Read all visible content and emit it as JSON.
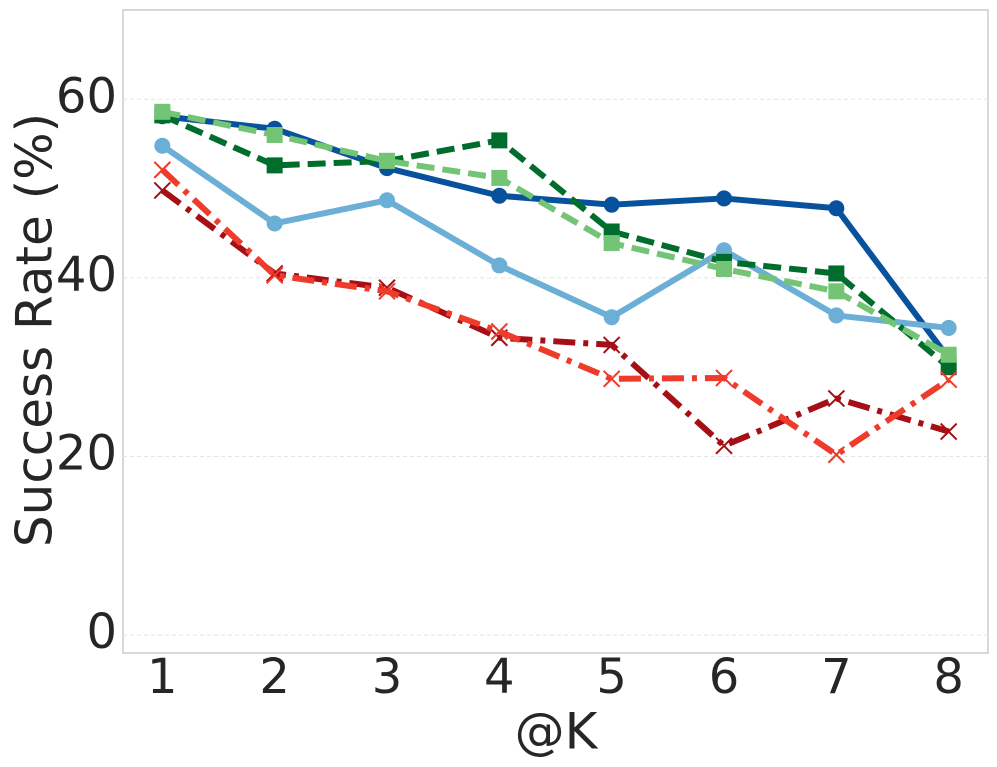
{
  "chart_data": {
    "type": "line",
    "xlabel": "@K",
    "ylabel": "Success Rate (%)",
    "x": [
      1,
      2,
      3,
      4,
      5,
      6,
      7,
      8
    ],
    "xlim": [
      0.65,
      8.35
    ],
    "ylim": [
      -2,
      70
    ],
    "xticks": [
      1,
      2,
      3,
      4,
      5,
      6,
      7,
      8
    ],
    "yticks": [
      0,
      20,
      40,
      60
    ],
    "grid": true,
    "series": [
      {
        "color": "#08519c",
        "dash": "solid",
        "marker": "circle",
        "values": [
          58.1,
          56.7,
          52.3,
          49.2,
          48.2,
          48.9,
          47.8,
          31.0
        ]
      },
      {
        "color": "#6baed6",
        "dash": "solid",
        "marker": "circle",
        "values": [
          54.8,
          46.1,
          48.7,
          41.4,
          35.6,
          43.1,
          35.8,
          34.4
        ]
      },
      {
        "color": "#006d2c",
        "dash": "dashed",
        "marker": "square",
        "values": [
          58.2,
          52.6,
          53.1,
          55.4,
          45.2,
          41.8,
          40.5,
          30.0
        ]
      },
      {
        "color": "#74c476",
        "dash": "dashed",
        "marker": "square",
        "values": [
          58.6,
          56.0,
          53.1,
          51.2,
          43.9,
          41.0,
          38.5,
          31.4
        ]
      },
      {
        "color": "#a50f15",
        "dash": "dashdot",
        "marker": "x",
        "values": [
          49.8,
          40.5,
          38.9,
          33.3,
          32.5,
          21.2,
          26.5,
          22.8
        ]
      },
      {
        "color": "#ef3b2c",
        "dash": "dashdot",
        "marker": "x",
        "values": [
          52.1,
          40.3,
          38.5,
          34.0,
          28.7,
          28.8,
          20.2,
          28.6
        ]
      }
    ]
  }
}
